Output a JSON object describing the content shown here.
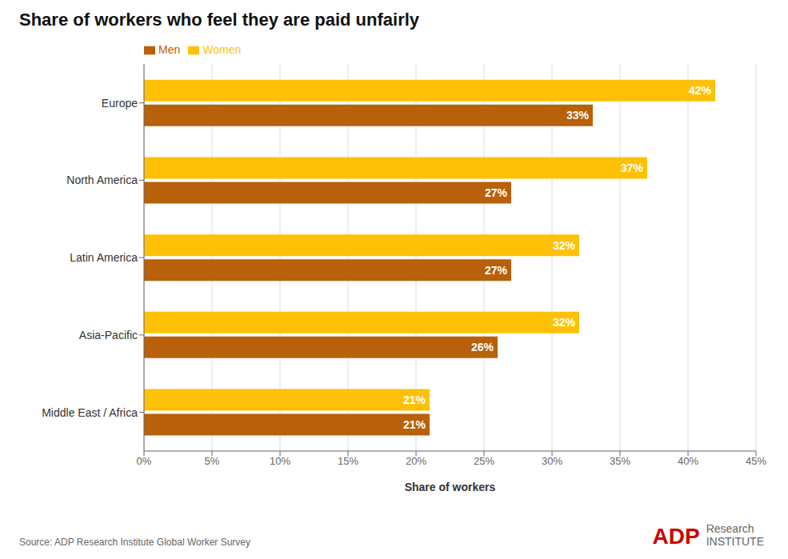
{
  "chart_data": {
    "type": "bar",
    "title": "Share of workers who feel they are paid unfairly",
    "xlabel": "Share of workers",
    "annotations": [
      "Source: ADP Research Institute Global Worker Survey",
      "ADP",
      "Research\nINSTITUTE"
    ],
    "orientation": "horizontal",
    "categories": [
      "Europe",
      "North America",
      "Latin America",
      "Asia-Pacific",
      "Middle East / Africa"
    ],
    "series": [
      {
        "name": "Women",
        "color": "#FFC107",
        "values": [
          42,
          37,
          32,
          32,
          21
        ],
        "value_labels": [
          "42%",
          "37%",
          "32%",
          "32%",
          "21%"
        ]
      },
      {
        "name": "Men",
        "color": "#B8600A",
        "values": [
          33,
          27,
          27,
          26,
          21
        ],
        "value_labels": [
          "33%",
          "27%",
          "27%",
          "26%",
          "21%"
        ]
      }
    ],
    "xlim": [
      0,
      45
    ],
    "xticks": [
      {
        "value": 0,
        "label": "0%"
      },
      {
        "value": 5,
        "label": "5%"
      },
      {
        "value": 10,
        "label": "10%"
      },
      {
        "value": 15,
        "label": "15%"
      },
      {
        "value": 20,
        "label": "20%"
      },
      {
        "value": 25,
        "label": "25%"
      },
      {
        "value": 30,
        "label": "30%"
      },
      {
        "value": 35,
        "label": "35%"
      },
      {
        "value": 40,
        "label": "40%"
      },
      {
        "value": 45,
        "label": "45%"
      }
    ],
    "grid": true,
    "legend": "upper left",
    "data_labels": true
  }
}
